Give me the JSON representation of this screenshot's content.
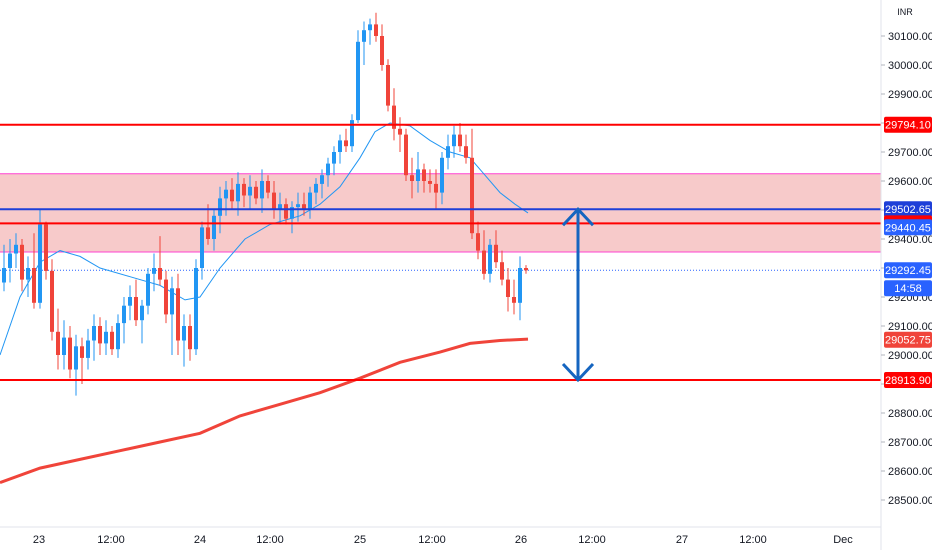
{
  "chart_data": {
    "type": "candlestick",
    "currency": "INR",
    "time_labels": [
      "23",
      "12:00",
      "24",
      "12:00",
      "25",
      "12:00",
      "26",
      "12:00",
      "27",
      "12:00",
      "Dec"
    ],
    "price_ticks": [
      "28500.00",
      "28600.00",
      "28700.00",
      "28800.00",
      "28900.00",
      "29000.00",
      "29100.00",
      "29200.00",
      "29300.00",
      "29400.00",
      "29500.00",
      "29600.00",
      "29700.00",
      "29800.00",
      "29900.00",
      "30000.00",
      "30100.00"
    ],
    "ylim": [
      28425,
      30170
    ],
    "last_price": "29292.45",
    "countdown": "14:58",
    "horizontal_levels": [
      {
        "price": 29794.1,
        "label": "29794.10",
        "color": "#ff0000"
      },
      {
        "price": 29502.65,
        "label": "29502.65",
        "color": "#1e3fd8"
      },
      {
        "price": 29453.8,
        "label": "29453.80",
        "color": "#ff0000"
      },
      {
        "price": 28913.9,
        "label": "28913.90",
        "color": "#ff0000"
      }
    ],
    "zone": {
      "from": 29355,
      "to": 29625,
      "color": "#f4b8b8",
      "border": "#ff40d0"
    },
    "ma_labels": [
      {
        "price": 29440.45,
        "label": "29440.45",
        "color": "#2962ff"
      },
      {
        "price": 29052.75,
        "label": "29052.75",
        "color": "#f0443a"
      }
    ],
    "ma_short": [
      [
        0,
        29000
      ],
      [
        20,
        29200
      ],
      [
        40,
        29320
      ],
      [
        60,
        29360
      ],
      [
        80,
        29340
      ],
      [
        100,
        29300
      ],
      [
        130,
        29270
      ],
      [
        160,
        29240
      ],
      [
        185,
        29190
      ],
      [
        200,
        29200
      ],
      [
        220,
        29300
      ],
      [
        245,
        29400
      ],
      [
        270,
        29450
      ],
      [
        300,
        29480
      ],
      [
        320,
        29520
      ],
      [
        340,
        29580
      ],
      [
        360,
        29680
      ],
      [
        375,
        29770
      ],
      [
        390,
        29800
      ],
      [
        410,
        29790
      ],
      [
        430,
        29740
      ],
      [
        450,
        29700
      ],
      [
        470,
        29680
      ],
      [
        485,
        29620
      ],
      [
        500,
        29560
      ],
      [
        515,
        29520
      ],
      [
        528,
        29490
      ]
    ],
    "ma_long": [
      [
        0,
        28560
      ],
      [
        40,
        28610
      ],
      [
        80,
        28640
      ],
      [
        120,
        28670
      ],
      [
        160,
        28700
      ],
      [
        200,
        28730
      ],
      [
        240,
        28790
      ],
      [
        280,
        28830
      ],
      [
        320,
        28870
      ],
      [
        360,
        28920
      ],
      [
        400,
        28975
      ],
      [
        440,
        29010
      ],
      [
        470,
        29040
      ],
      [
        500,
        29050
      ],
      [
        528,
        29055
      ]
    ],
    "candles": [
      [
        4,
        29250,
        29380,
        29220,
        29300
      ],
      [
        10,
        29300,
        29400,
        29250,
        29350
      ],
      [
        16,
        29350,
        29420,
        29300,
        29380
      ],
      [
        22,
        29380,
        29400,
        29220,
        29260
      ],
      [
        28,
        29260,
        29340,
        29200,
        29300
      ],
      [
        34,
        29300,
        29420,
        29160,
        29180
      ],
      [
        40,
        29180,
        29500,
        29160,
        29450
      ],
      [
        46,
        29450,
        29460,
        29260,
        29290
      ],
      [
        52,
        29290,
        29330,
        29050,
        29080
      ],
      [
        58,
        29080,
        29160,
        28950,
        29000
      ],
      [
        64,
        29000,
        29120,
        28950,
        29060
      ],
      [
        70,
        29060,
        29100,
        28920,
        28950
      ],
      [
        76,
        28950,
        29070,
        28860,
        29030
      ],
      [
        82,
        29030,
        29060,
        28900,
        28990
      ],
      [
        88,
        28990,
        29090,
        28950,
        29050
      ],
      [
        94,
        29050,
        29140,
        28980,
        29100
      ],
      [
        100,
        29100,
        29130,
        29000,
        29040
      ],
      [
        106,
        29040,
        29120,
        29000,
        29080
      ],
      [
        112,
        29080,
        29100,
        29000,
        29020
      ],
      [
        118,
        29020,
        29140,
        28990,
        29110
      ],
      [
        124,
        29110,
        29200,
        29040,
        29170
      ],
      [
        130,
        29170,
        29240,
        29120,
        29200
      ],
      [
        136,
        29200,
        29260,
        29100,
        29120
      ],
      [
        142,
        29120,
        29190,
        29040,
        29170
      ],
      [
        148,
        29170,
        29300,
        29140,
        29280
      ],
      [
        154,
        29280,
        29350,
        29220,
        29300
      ],
      [
        160,
        29300,
        29410,
        29240,
        29260
      ],
      [
        166,
        29260,
        29290,
        29110,
        29140
      ],
      [
        172,
        29140,
        29270,
        29000,
        29230
      ],
      [
        178,
        29230,
        29280,
        29000,
        29050
      ],
      [
        184,
        29050,
        29140,
        28960,
        29100
      ],
      [
        190,
        29100,
        29140,
        28980,
        29020
      ],
      [
        196,
        29020,
        29330,
        29000,
        29300
      ],
      [
        202,
        29300,
        29460,
        29260,
        29440
      ],
      [
        208,
        29440,
        29520,
        29380,
        29400
      ],
      [
        214,
        29400,
        29500,
        29360,
        29480
      ],
      [
        220,
        29480,
        29580,
        29420,
        29540
      ],
      [
        226,
        29540,
        29600,
        29480,
        29570
      ],
      [
        232,
        29570,
        29610,
        29500,
        29530
      ],
      [
        238,
        29530,
        29630,
        29480,
        29590
      ],
      [
        244,
        29590,
        29610,
        29510,
        29550
      ],
      [
        250,
        29550,
        29620,
        29500,
        29580
      ],
      [
        256,
        29580,
        29600,
        29520,
        29540
      ],
      [
        262,
        29540,
        29640,
        29490,
        29600
      ],
      [
        268,
        29600,
        29620,
        29540,
        29560
      ],
      [
        274,
        29560,
        29600,
        29470,
        29500
      ],
      [
        280,
        29500,
        29560,
        29450,
        29520
      ],
      [
        286,
        29520,
        29540,
        29450,
        29470
      ],
      [
        292,
        29470,
        29530,
        29420,
        29510
      ],
      [
        298,
        29510,
        29560,
        29460,
        29520
      ],
      [
        304,
        29520,
        29560,
        29480,
        29500
      ],
      [
        310,
        29500,
        29580,
        29470,
        29560
      ],
      [
        316,
        29560,
        29610,
        29520,
        29590
      ],
      [
        322,
        29590,
        29640,
        29540,
        29620
      ],
      [
        328,
        29620,
        29680,
        29580,
        29660
      ],
      [
        334,
        29660,
        29720,
        29620,
        29700
      ],
      [
        340,
        29700,
        29760,
        29660,
        29740
      ],
      [
        346,
        29740,
        29780,
        29700,
        29720
      ],
      [
        352,
        29720,
        29830,
        29700,
        29810
      ],
      [
        358,
        29810,
        30120,
        29800,
        30080
      ],
      [
        364,
        30080,
        30150,
        30000,
        30120
      ],
      [
        370,
        30120,
        30160,
        30070,
        30140
      ],
      [
        376,
        30140,
        30180,
        30080,
        30100
      ],
      [
        382,
        30100,
        30140,
        29980,
        30000
      ],
      [
        388,
        30000,
        30020,
        29840,
        29860
      ],
      [
        394,
        29860,
        29920,
        29740,
        29780
      ],
      [
        400,
        29780,
        29820,
        29700,
        29760
      ],
      [
        406,
        29760,
        29780,
        29600,
        29620
      ],
      [
        412,
        29620,
        29680,
        29540,
        29600
      ],
      [
        418,
        29600,
        29700,
        29560,
        29640
      ],
      [
        424,
        29640,
        29660,
        29560,
        29600
      ],
      [
        430,
        29600,
        29640,
        29560,
        29590
      ],
      [
        436,
        29590,
        29640,
        29500,
        29560
      ],
      [
        442,
        29560,
        29700,
        29520,
        29680
      ],
      [
        448,
        29680,
        29760,
        29640,
        29720
      ],
      [
        454,
        29720,
        29790,
        29680,
        29760
      ],
      [
        460,
        29760,
        29800,
        29700,
        29720
      ],
      [
        466,
        29720,
        29760,
        29660,
        29680
      ],
      [
        472,
        29680,
        29780,
        29400,
        29420
      ],
      [
        478,
        29420,
        29460,
        29330,
        29360
      ],
      [
        484,
        29360,
        29430,
        29260,
        29280
      ],
      [
        490,
        29280,
        29400,
        29250,
        29380
      ],
      [
        496,
        29380,
        29430,
        29300,
        29320
      ],
      [
        502,
        29320,
        29360,
        29240,
        29260
      ],
      [
        508,
        29260,
        29300,
        29150,
        29200
      ],
      [
        514,
        29200,
        29260,
        29140,
        29180
      ],
      [
        520,
        29180,
        29340,
        29120,
        29300
      ],
      [
        526,
        29300,
        29310,
        29280,
        29292
      ]
    ]
  }
}
